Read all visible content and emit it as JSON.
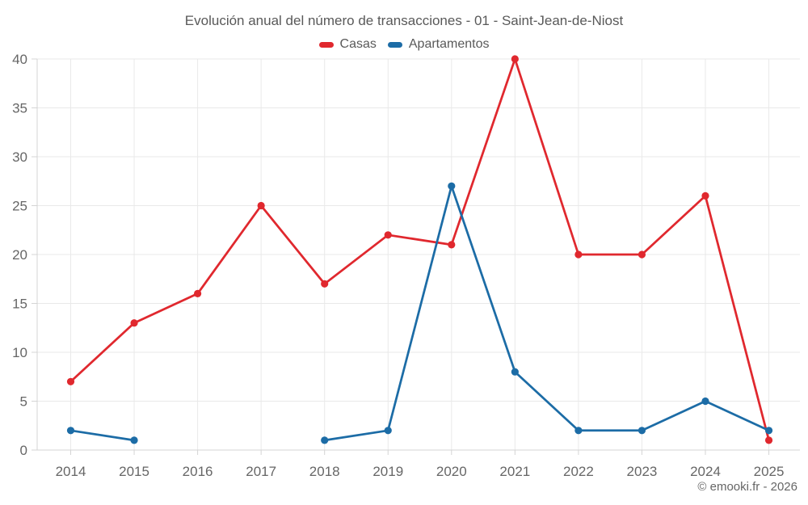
{
  "chart_data": {
    "type": "line",
    "title": "Evolución anual del número de transacciones - 01 - Saint-Jean-de-Niost",
    "x": [
      2014,
      2015,
      2016,
      2017,
      2018,
      2019,
      2020,
      2021,
      2022,
      2023,
      2024,
      2025
    ],
    "series": [
      {
        "name": "Casas",
        "color": "#e0282e",
        "values": [
          7,
          13,
          16,
          25,
          17,
          22,
          21,
          40,
          20,
          20,
          26,
          1
        ]
      },
      {
        "name": "Apartamentos",
        "color": "#1c6ca6",
        "values": [
          2,
          1,
          null,
          null,
          1,
          2,
          27,
          8,
          2,
          2,
          5,
          2
        ]
      }
    ],
    "ylim": [
      0,
      40
    ],
    "yticks": [
      0,
      5,
      10,
      15,
      20,
      25,
      30,
      35,
      40
    ],
    "grid": true,
    "legend_position": "top",
    "footer": "© emooki.fr - 2026",
    "colors": {
      "grid": "#e9e9e9",
      "axis": "#d4d4d4",
      "tick_label": "#666666",
      "title_text": "#595959"
    }
  }
}
